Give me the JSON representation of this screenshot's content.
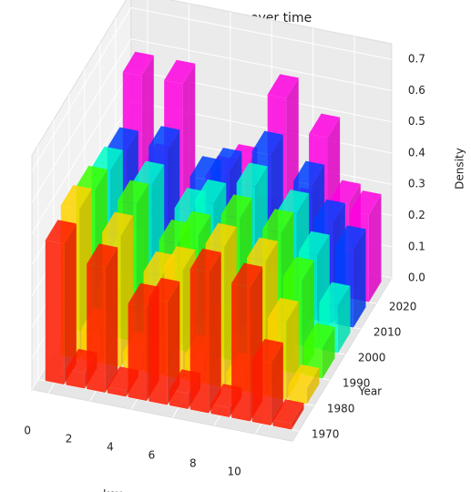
{
  "chart_data": {
    "type": "bar3d",
    "title": "Density histogram over time",
    "xlabel": "key",
    "ylabel": "Year",
    "zlabel": "Density",
    "keys": [
      0,
      1,
      2,
      3,
      4,
      5,
      6,
      7,
      8,
      9,
      10,
      11
    ],
    "series": [
      {
        "year": 1970,
        "color": "#ff1a00",
        "values": [
          0.45,
          0.05,
          0.4,
          0.02,
          0.3,
          0.33,
          0.05,
          0.45,
          0.03,
          0.43,
          0.2,
          0.02
        ]
      },
      {
        "year": 1980,
        "color": "#ffd400",
        "values": [
          0.48,
          0.1,
          0.42,
          0.05,
          0.32,
          0.35,
          0.08,
          0.45,
          0.05,
          0.43,
          0.25,
          0.05
        ]
      },
      {
        "year": 1990,
        "color": "#3cff00",
        "values": [
          0.46,
          0.15,
          0.44,
          0.08,
          0.34,
          0.38,
          0.1,
          0.46,
          0.1,
          0.44,
          0.3,
          0.1
        ]
      },
      {
        "year": 2000,
        "color": "#00ffc8",
        "values": [
          0.44,
          0.2,
          0.42,
          0.1,
          0.36,
          0.4,
          0.12,
          0.48,
          0.15,
          0.42,
          0.3,
          0.15
        ]
      },
      {
        "year": 2010,
        "color": "#0040ff",
        "values": [
          0.42,
          0.25,
          0.45,
          0.12,
          0.38,
          0.42,
          0.15,
          0.5,
          0.2,
          0.43,
          0.32,
          0.25
        ]
      },
      {
        "year": 2020,
        "color": "#ff00e0",
        "values": [
          0.58,
          0.3,
          0.58,
          0.15,
          0.3,
          0.35,
          0.2,
          0.6,
          0.25,
          0.5,
          0.3,
          0.28
        ]
      }
    ],
    "xticks": [
      0,
      2,
      4,
      6,
      8,
      10
    ],
    "yticks": [
      1970,
      1980,
      1990,
      2000,
      2010,
      2020
    ],
    "zlim": [
      0,
      0.7
    ],
    "zticks": [
      {
        "value": 0,
        "label": "0.0"
      },
      0.1,
      0.2,
      0.3,
      0.4,
      0.5,
      0.6,
      0.7
    ],
    "grid": true
  }
}
